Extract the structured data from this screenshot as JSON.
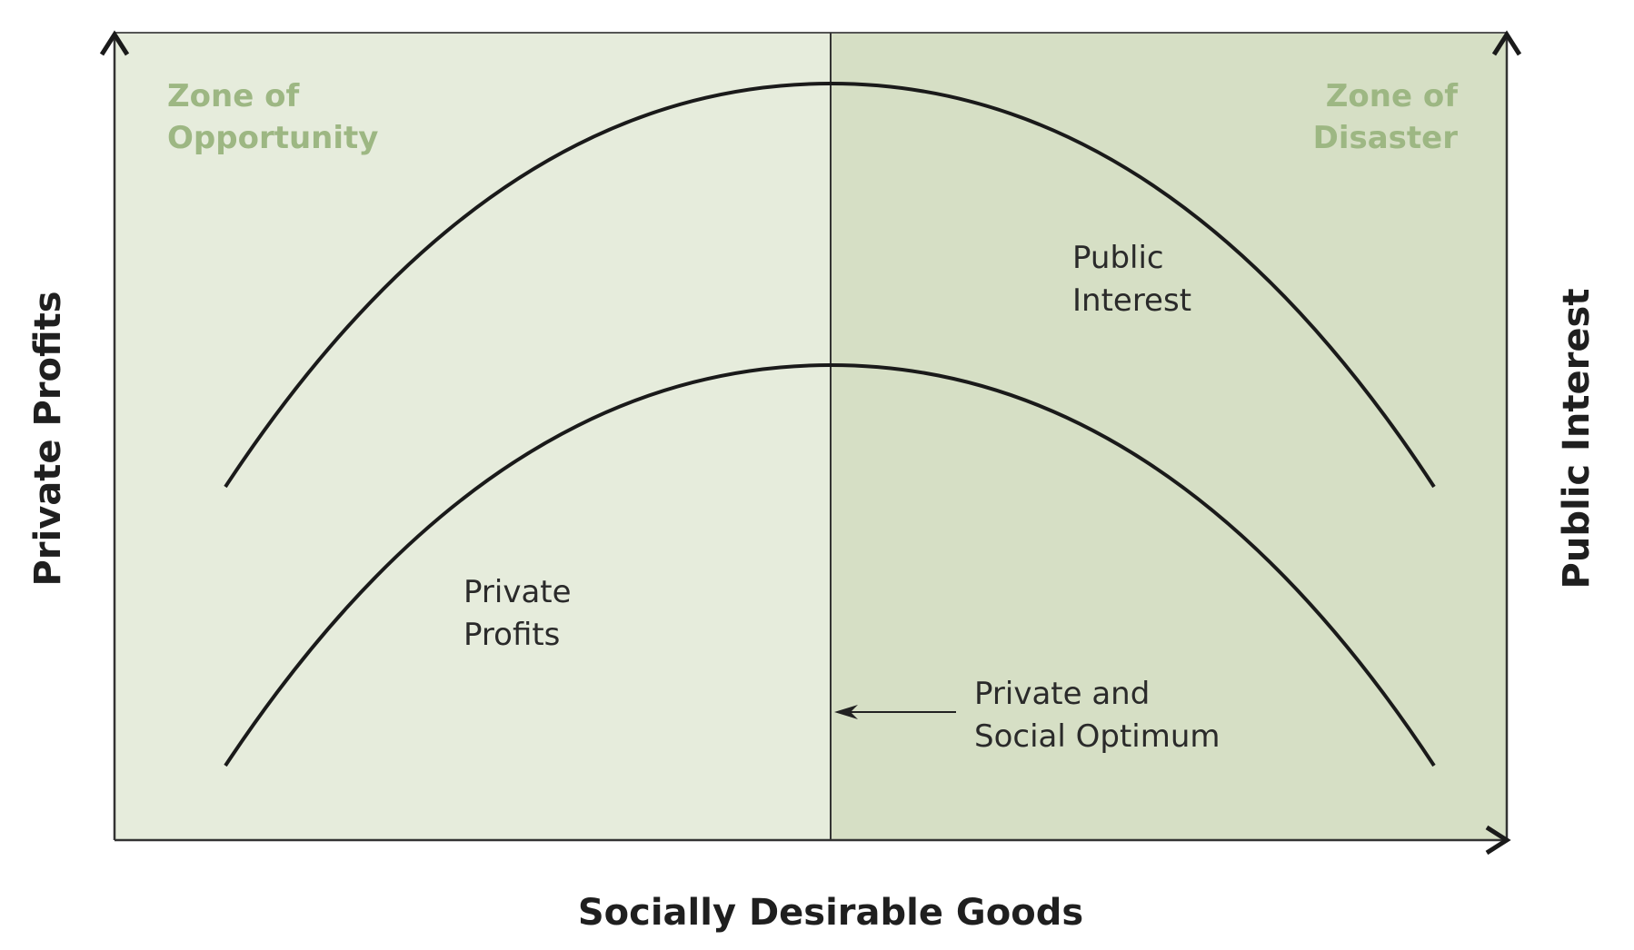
{
  "diagram": {
    "zones": {
      "left": {
        "label_line1": "Zone of",
        "label_line2": "Opportunity",
        "fill": "#e6ecdc"
      },
      "right": {
        "label_line1": "Zone of",
        "label_line2": "Disaster",
        "fill": "#d6dfc5"
      },
      "label_color": "#9db783"
    },
    "curves": {
      "public_interest": {
        "label_line1": "Public",
        "label_line2": "Interest"
      },
      "private_profits": {
        "label_line1": "Private",
        "label_line2": "Profits"
      }
    },
    "optimum": {
      "label_line1": "Private and",
      "label_line2": "Social Optimum"
    },
    "axes": {
      "x_title": "Socially Desirable Goods",
      "left_y_title": "Private Profits",
      "right_y_title": "Public Interest"
    },
    "colors": {
      "line": "#1a1a1a",
      "frame": "#333333"
    }
  }
}
